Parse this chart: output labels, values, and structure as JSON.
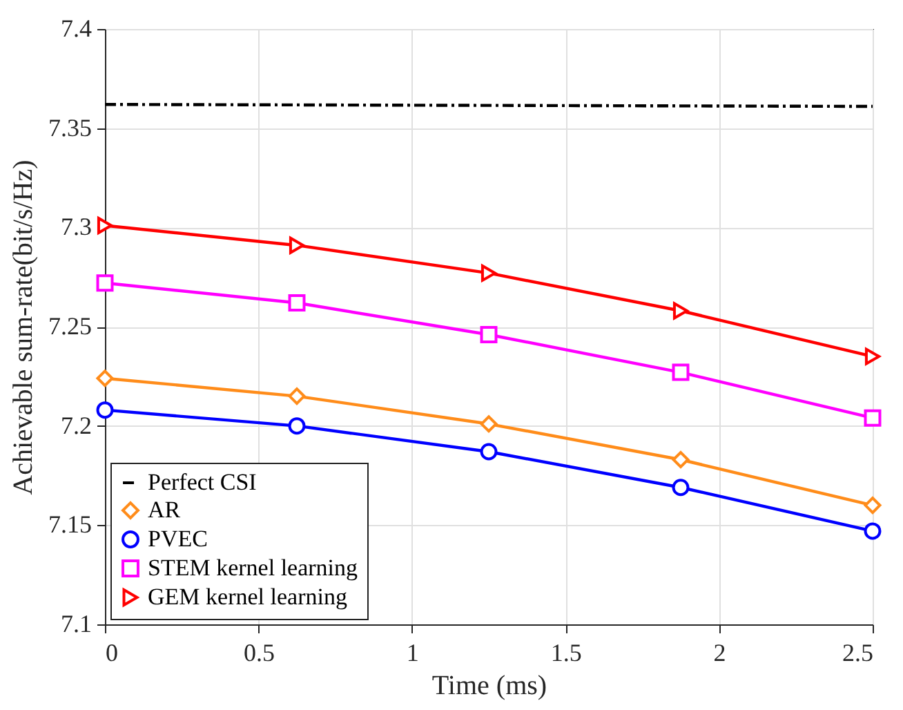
{
  "chart_data": {
    "type": "line",
    "xlabel": "Time (ms)",
    "ylabel": "Achievable sum-rate(bit/s/Hz)",
    "x": [
      0,
      0.625,
      1.25,
      1.875,
      2.5
    ],
    "series": [
      {
        "name": "Perfect CSI",
        "color": "#000000",
        "line_style": "dashdot",
        "marker": "none",
        "x": [
          0,
          2.5
        ],
        "values": [
          7.362,
          7.361
        ]
      },
      {
        "name": "AR",
        "color": "#ff8c1a",
        "marker": "diamond",
        "values": [
          7.224,
          7.215,
          7.201,
          7.183,
          7.16
        ]
      },
      {
        "name": "PVEC",
        "color": "#0000ff",
        "marker": "circle",
        "values": [
          7.208,
          7.2,
          7.187,
          7.169,
          7.147
        ]
      },
      {
        "name": "STEM kernel learning",
        "color": "#ff00ff",
        "marker": "square",
        "values": [
          7.272,
          7.262,
          7.246,
          7.227,
          7.204
        ]
      },
      {
        "name": "GEM kernel learning",
        "color": "#ff0000",
        "marker": "triangle-right",
        "values": [
          7.301,
          7.291,
          7.277,
          7.258,
          7.235
        ]
      }
    ],
    "xlim": [
      0,
      2.5
    ],
    "xticks": [
      0,
      0.5,
      1,
      1.5,
      2,
      2.5
    ],
    "ylim": [
      7.1,
      7.4
    ],
    "yticks": [
      7.1,
      7.15,
      7.2,
      7.25,
      7.3,
      7.35,
      7.4
    ],
    "grid": true,
    "legend": "bottom left"
  }
}
